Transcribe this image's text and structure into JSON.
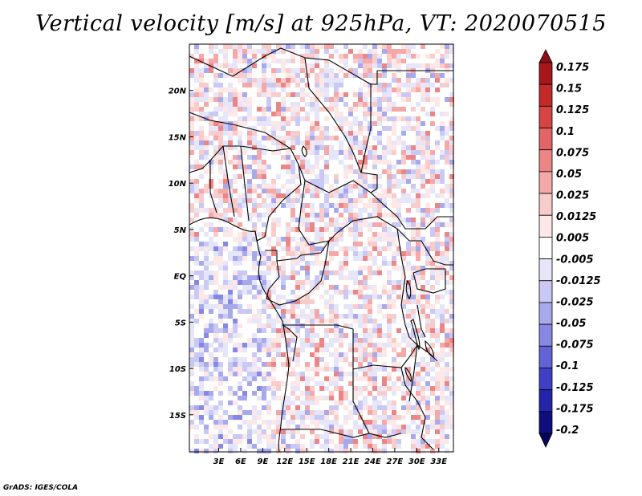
{
  "title": "Vertical velocity [m/s] at 925hPa, VT: 2020070515",
  "credit": "GrADS: IGES/COLA",
  "map": {
    "lon_range": [
      -1,
      35
    ],
    "lat_range": [
      -19,
      25
    ],
    "lon_ticks": [
      "3E",
      "6E",
      "9E",
      "12E",
      "15E",
      "18E",
      "21E",
      "24E",
      "27E",
      "30E",
      "33E"
    ],
    "lon_tick_values": [
      3,
      6,
      9,
      12,
      15,
      18,
      21,
      24,
      27,
      30,
      33
    ],
    "lat_ticks": [
      "20N",
      "15N",
      "10N",
      "5N",
      "EQ",
      "5S",
      "10S",
      "15S"
    ],
    "lat_tick_values": [
      20,
      15,
      10,
      5,
      0,
      -5,
      -10,
      -15
    ]
  },
  "colorbar": {
    "labels": [
      "0.175",
      "0.15",
      "0.125",
      "0.1",
      "0.075",
      "0.05",
      "0.025",
      "0.0125",
      "0.005",
      "-0.005",
      "-0.0125",
      "-0.025",
      "-0.05",
      "-0.075",
      "-0.1",
      "-0.125",
      "-0.175",
      "-0.2"
    ],
    "colors": [
      "#8b0f16",
      "#a8161b",
      "#c22a2a",
      "#d74444",
      "#e26464",
      "#ec8686",
      "#f4a8a8",
      "#f9cccc",
      "#fde7e7",
      "#ffffff",
      "#e6e6fb",
      "#c9c9f3",
      "#a8a8ec",
      "#8787e4",
      "#6363d8",
      "#3f3fc6",
      "#2424a8",
      "#100e7c",
      "#04045a"
    ]
  }
}
